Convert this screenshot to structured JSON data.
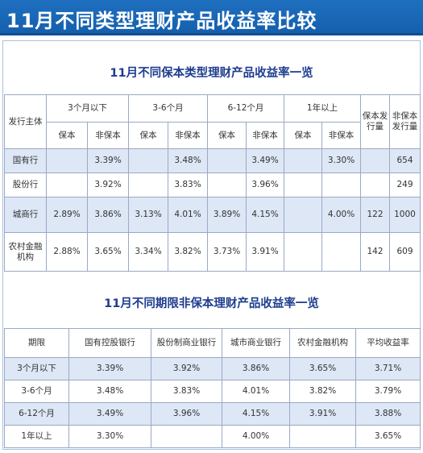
{
  "title": "11月不同类型理财产品收益率比较",
  "table1": {
    "title": "11月不同保本类型理财产品收益率一览",
    "issuer_header": "发行主体",
    "term_headers": [
      "3个月以下",
      "3-6个月",
      "6-12个月",
      "1年以上"
    ],
    "guaranteed_label": "保本",
    "non_guaranteed_label": "非保本",
    "guaranteed_count_header": "保本发行量",
    "non_guaranteed_count_header": "非保本发行量",
    "rows": [
      {
        "issuer": "国有行",
        "cells": [
          "",
          "3.39%",
          "",
          "3.48%",
          "",
          "3.49%",
          "",
          "3.30%",
          "",
          "654"
        ]
      },
      {
        "issuer": "股份行",
        "cells": [
          "",
          "3.92%",
          "",
          "3.83%",
          "",
          "3.96%",
          "",
          "",
          "",
          "249"
        ]
      },
      {
        "issuer": "城商行",
        "cells": [
          "2.89%",
          "3.86%",
          "3.13%",
          "4.01%",
          "3.89%",
          "4.15%",
          "",
          "4.00%",
          "122",
          "1000"
        ]
      },
      {
        "issuer": "农村金融机构",
        "cells": [
          "2.88%",
          "3.65%",
          "3.34%",
          "3.82%",
          "3.73%",
          "3.91%",
          "",
          "",
          "142",
          "609"
        ]
      }
    ]
  },
  "table2": {
    "title": "11月不同期限非保本理财产品收益率一览",
    "headers": [
      "期限",
      "国有控股银行",
      "股份制商业银行",
      "城市商业银行",
      "农村金融机构",
      "平均收益率"
    ],
    "rows": [
      [
        "3个月以下",
        "3.39%",
        "3.92%",
        "3.86%",
        "3.65%",
        "3.71%"
      ],
      [
        "3-6个月",
        "3.48%",
        "3.83%",
        "4.01%",
        "3.82%",
        "3.79%"
      ],
      [
        "6-12个月",
        "3.49%",
        "3.96%",
        "4.15%",
        "3.91%",
        "3.88%"
      ],
      [
        "1年以上",
        "3.30%",
        "",
        "4.00%",
        "",
        "3.65%"
      ]
    ]
  }
}
